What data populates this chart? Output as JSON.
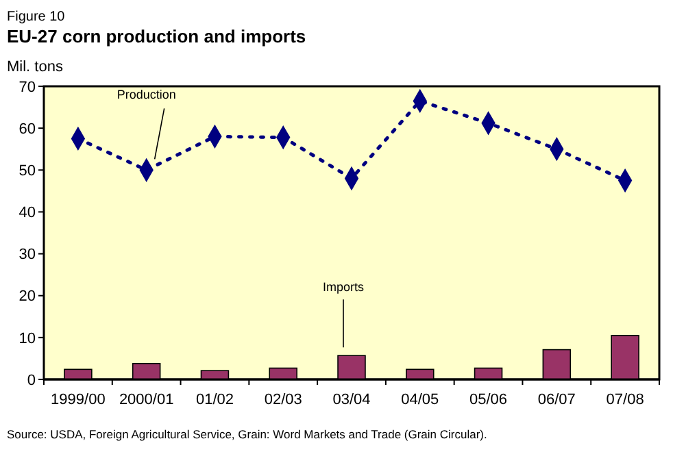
{
  "chart_data": {
    "type": "bar",
    "subtitle": "Figure 10",
    "title": "EU-27 corn production and imports",
    "ylabel": "Mil. tons",
    "categories": [
      "1999/00",
      "2000/01",
      "01/02",
      "02/03",
      "03/04",
      "04/05",
      "05/06",
      "06/07",
      "07/08"
    ],
    "series": [
      {
        "name": "Production",
        "type": "line",
        "color": "#000080",
        "marker": "diamond",
        "line_style": "dotted",
        "values": [
          57.5,
          50,
          58,
          57.8,
          48,
          66.5,
          61.2,
          55,
          47.5
        ]
      },
      {
        "name": "Imports",
        "color": "#993366",
        "values": [
          2.4,
          3.8,
          2.1,
          2.7,
          5.7,
          2.4,
          2.7,
          7.1,
          10.5
        ]
      }
    ],
    "ylim": [
      0,
      70
    ],
    "yticks": [
      0,
      10,
      20,
      30,
      40,
      50,
      60,
      70
    ],
    "grid": false,
    "annotations": [
      "Source: USDA, Foreign Agricultural Service, Grain: Word Markets and Trade (Grain Circular)."
    ]
  }
}
